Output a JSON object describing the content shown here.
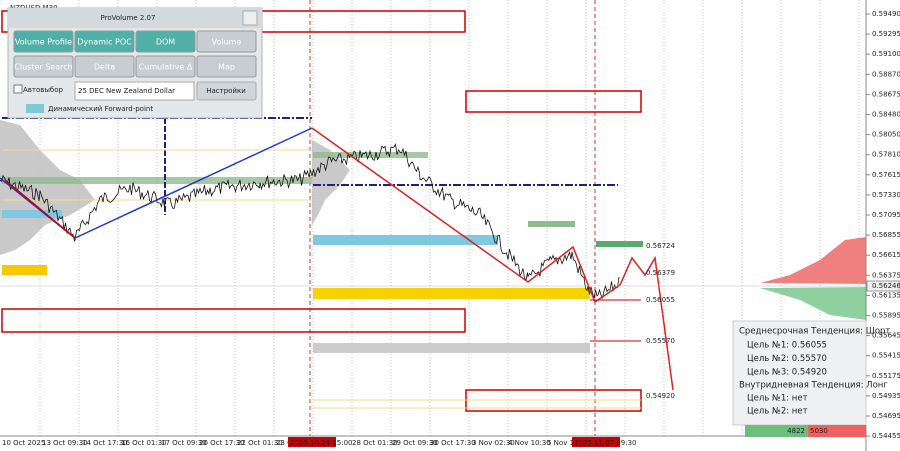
{
  "chart_label": "NZDUSD,M30",
  "panel": {
    "title": "ProVolume 2.07",
    "buttons": [
      "Volume Profile",
      "Dynamic POC",
      "DOM",
      "Volume",
      "Cluster Search",
      "Delta",
      "Cumulative Δ",
      "Map"
    ],
    "auto_label": "Автовыбор",
    "instrument": "25 DEC New Zealand Dollar",
    "settings": "Настройки",
    "forward": "Динамический Forward-point"
  },
  "price_axis": [
    "0.59490",
    "0.59295",
    "0.59100",
    "0.58870",
    "0.58675",
    "0.58480",
    "0.58050",
    "0.57810",
    "0.57615",
    "0.57330",
    "0.57095",
    "0.56855",
    "0.56615",
    "0.56375",
    "0.56135",
    "0.55895",
    "0.55645",
    "0.55415",
    "0.55175",
    "0.54935",
    "0.54695",
    "0.54455"
  ],
  "current_price": "0.56246",
  "time_axis": [
    "10 Oct 2025",
    "13 Oct 09:30",
    "14 Oct 17:30",
    "16 Oct 01:30",
    "17 Oct 09:30",
    "20 Oct 17:30",
    "22 Oct 01:30",
    "23 O",
    "28 Oct 01:30",
    "29 Oct 09:30",
    "30 Oct 17:30",
    "3 Nov 02:30",
    "4 Nov 10:30",
    "5 Nov 18"
  ],
  "cursor_times": [
    "2025.10.24 15:00",
    "2025.11.07 09:30"
  ],
  "level_labels": [
    "0.56724",
    "0.56379",
    "0.56055",
    "0.55570",
    "0.54920"
  ],
  "info": {
    "medium_title": "Среднесрочная Тенденция: Шорт",
    "medium_targets": [
      "Цель №1: 0.56055",
      "Цель №2: 0.55570",
      "Цель №3: 0.54920"
    ],
    "intraday_title": "Внутридневная Тенденция: Лонг",
    "intraday_targets": [
      "Цель №1: нет",
      "Цель №2: нет"
    ]
  },
  "volume_bar": [
    "4822",
    "5030"
  ]
}
